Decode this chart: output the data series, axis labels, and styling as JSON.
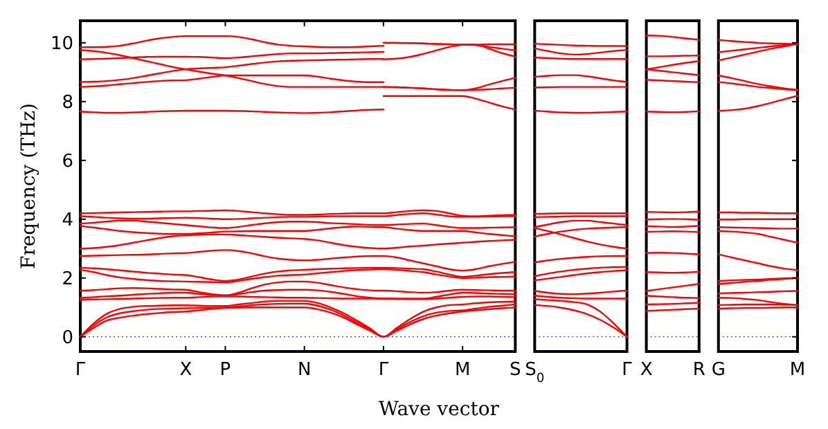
{
  "chart_data": [
    {
      "type": "line",
      "ylabel": "Frequency (THz)",
      "xlabel": "Wave vector",
      "ylim": [
        -0.5,
        10.75
      ],
      "yticks": [
        0,
        2,
        4,
        6,
        8,
        10
      ],
      "categories": [
        "Γ",
        null,
        null,
        null,
        null,
        null,
        null,
        null,
        "X",
        null,
        null,
        "P",
        null,
        null,
        null,
        null,
        null,
        "N",
        null,
        null,
        null,
        null,
        null,
        "Γ",
        null,
        null,
        null,
        null,
        null,
        "M",
        null,
        null,
        null,
        "S"
      ],
      "ref_lines": [
        {
          "axis": "y",
          "value": 0,
          "color": "#0000ff",
          "line_style": "dotted"
        }
      ],
      "series": [
        {
          "color": "#ff0000",
          "values": [
            9.85,
            9.85,
            9.86,
            9.9,
            9.98,
            10.07,
            10.15,
            10.2,
            10.23,
            10.23,
            10.23,
            10.23,
            10.2,
            10.12,
            10.02,
            9.94,
            9.9,
            9.88,
            9.86,
            9.85,
            9.85,
            9.86,
            9.88,
            9.9,
            null,
            null,
            null,
            null,
            null,
            null,
            null,
            null,
            null,
            null
          ]
        },
        {
          "color": "#ff0000",
          "values": [
            9.75,
            9.72,
            9.66,
            9.58,
            9.48,
            9.38,
            9.28,
            9.18,
            9.1,
            9.02,
            8.95,
            8.89,
            8.8,
            8.7,
            8.6,
            8.53,
            8.5,
            8.5,
            8.5,
            8.5,
            8.5,
            8.5,
            8.5,
            8.5,
            null,
            null,
            null,
            null,
            null,
            null,
            null,
            null,
            null,
            null
          ]
        },
        {
          "color": "#ff0000",
          "values": [
            9.44,
            9.45,
            9.46,
            9.48,
            9.5,
            9.52,
            9.53,
            9.53,
            9.53,
            9.52,
            9.5,
            9.48,
            9.5,
            9.54,
            9.58,
            9.62,
            9.64,
            9.64,
            9.64,
            9.65,
            9.66,
            9.67,
            9.68,
            9.69,
            null,
            null,
            null,
            null,
            null,
            null,
            null,
            null,
            null,
            null
          ]
        },
        {
          "color": "#ff0000",
          "values": [
            8.67,
            8.68,
            8.7,
            8.74,
            8.8,
            8.88,
            8.96,
            9.04,
            9.1,
            9.13,
            9.15,
            9.17,
            9.22,
            9.28,
            9.33,
            9.37,
            9.39,
            9.4,
            9.41,
            9.42,
            9.43,
            9.44,
            9.45,
            9.45,
            null,
            null,
            null,
            null,
            null,
            null,
            null,
            null,
            null,
            null
          ]
        },
        {
          "color": "#ff0000",
          "values": [
            8.5,
            8.52,
            8.55,
            8.59,
            8.63,
            8.67,
            8.7,
            8.72,
            8.73,
            8.78,
            8.84,
            8.89,
            8.89,
            8.89,
            8.89,
            8.89,
            8.89,
            8.89,
            8.85,
            8.78,
            8.72,
            8.68,
            8.66,
            8.66,
            null,
            null,
            null,
            null,
            null,
            null,
            null,
            null,
            null,
            null
          ]
        },
        {
          "color": "#ff0000",
          "values": [
            7.66,
            7.64,
            7.62,
            7.62,
            7.63,
            7.65,
            7.67,
            7.68,
            7.69,
            7.69,
            7.69,
            7.69,
            7.68,
            7.67,
            7.65,
            7.63,
            7.62,
            7.61,
            7.62,
            7.64,
            7.67,
            7.7,
            7.72,
            7.73,
            null,
            null,
            null,
            null,
            null,
            null,
            null,
            null,
            null,
            null
          ]
        },
        {
          "color": "#ff0000",
          "values": [
            null,
            null,
            null,
            null,
            null,
            null,
            null,
            null,
            null,
            null,
            null,
            null,
            null,
            null,
            null,
            null,
            null,
            null,
            null,
            null,
            null,
            null,
            null,
            10.0,
            10.0,
            9.99,
            9.98,
            9.96,
            9.95,
            9.94,
            9.94,
            9.95,
            9.95,
            9.95
          ]
        },
        {
          "color": "#ff0000",
          "values": [
            null,
            null,
            null,
            null,
            null,
            null,
            null,
            null,
            null,
            null,
            null,
            null,
            null,
            null,
            null,
            null,
            null,
            null,
            null,
            null,
            null,
            null,
            null,
            10.0,
            10.0,
            9.99,
            9.98,
            9.96,
            9.95,
            9.94,
            9.92,
            9.86,
            9.8,
            9.75
          ]
        },
        {
          "color": "#ff0000",
          "values": [
            null,
            null,
            null,
            null,
            null,
            null,
            null,
            null,
            null,
            null,
            null,
            null,
            null,
            null,
            null,
            null,
            null,
            null,
            null,
            null,
            null,
            null,
            null,
            9.44,
            9.46,
            9.52,
            9.62,
            9.74,
            9.86,
            9.93,
            9.94,
            9.8,
            9.65,
            9.53
          ]
        },
        {
          "color": "#ff0000",
          "values": [
            null,
            null,
            null,
            null,
            null,
            null,
            null,
            null,
            null,
            null,
            null,
            null,
            null,
            null,
            null,
            null,
            null,
            null,
            null,
            null,
            null,
            null,
            null,
            8.5,
            8.49,
            8.47,
            8.45,
            8.42,
            8.4,
            8.39,
            8.45,
            8.58,
            8.7,
            8.81
          ]
        },
        {
          "color": "#ff0000",
          "values": [
            null,
            null,
            null,
            null,
            null,
            null,
            null,
            null,
            null,
            null,
            null,
            null,
            null,
            null,
            null,
            null,
            null,
            null,
            null,
            null,
            null,
            null,
            null,
            8.5,
            8.49,
            8.47,
            8.45,
            8.42,
            8.4,
            8.39,
            8.4,
            8.42,
            8.45,
            8.47
          ]
        },
        {
          "color": "#ff0000",
          "values": [
            null,
            null,
            null,
            null,
            null,
            null,
            null,
            null,
            null,
            null,
            null,
            null,
            null,
            null,
            null,
            null,
            null,
            null,
            null,
            null,
            null,
            null,
            null,
            8.19,
            8.19,
            8.19,
            8.19,
            8.19,
            8.19,
            8.19,
            8.1,
            7.97,
            7.84,
            7.73
          ]
        },
        {
          "color": "#ff0000",
          "values": [
            4.2,
            4.21,
            4.22,
            4.23,
            4.24,
            4.25,
            4.26,
            4.27,
            4.27,
            4.28,
            4.29,
            4.3,
            4.28,
            4.24,
            4.2,
            4.17,
            4.15,
            4.15,
            4.16,
            4.18,
            4.19,
            4.2,
            4.2,
            4.2,
            4.24,
            4.28,
            4.3,
            4.28,
            4.2,
            4.12,
            4.1,
            4.12,
            4.14,
            4.15
          ]
        },
        {
          "color": "#ff0000",
          "values": [
            4.1,
            4.08,
            4.05,
            4.03,
            4.02,
            4.02,
            4.03,
            4.04,
            4.05,
            4.04,
            4.02,
            4.0,
            4.01,
            4.03,
            4.05,
            4.07,
            4.08,
            4.08,
            4.09,
            4.1,
            4.1,
            4.1,
            4.1,
            4.1,
            4.14,
            4.18,
            4.2,
            4.16,
            4.1,
            4.08,
            4.08,
            4.09,
            4.1,
            4.1
          ]
        },
        {
          "color": "#ff0000",
          "values": [
            3.85,
            3.88,
            3.92,
            3.95,
            3.95,
            3.92,
            3.88,
            3.84,
            3.8,
            3.76,
            3.72,
            3.7,
            3.74,
            3.8,
            3.86,
            3.9,
            3.92,
            3.92,
            3.9,
            3.87,
            3.85,
            3.83,
            3.81,
            3.8,
            3.82,
            3.84,
            3.85,
            3.8,
            3.74,
            3.7,
            3.7,
            3.71,
            3.72,
            3.73
          ]
        },
        {
          "color": "#ff0000",
          "values": [
            3.77,
            3.72,
            3.66,
            3.6,
            3.56,
            3.53,
            3.51,
            3.5,
            3.5,
            3.52,
            3.55,
            3.58,
            3.59,
            3.6,
            3.6,
            3.6,
            3.6,
            3.6,
            3.64,
            3.69,
            3.73,
            3.75,
            3.74,
            3.73,
            3.68,
            3.63,
            3.6,
            3.6,
            3.6,
            3.6,
            3.55,
            3.5,
            3.46,
            3.42
          ]
        },
        {
          "color": "#ff0000",
          "values": [
            3.0,
            3.02,
            3.06,
            3.12,
            3.2,
            3.28,
            3.36,
            3.42,
            3.45,
            3.47,
            3.48,
            3.48,
            3.46,
            3.43,
            3.4,
            3.37,
            3.35,
            3.33,
            3.28,
            3.2,
            3.12,
            3.06,
            3.02,
            3.0,
            3.03,
            3.07,
            3.1,
            3.14,
            3.17,
            3.2,
            3.23,
            3.26,
            3.28,
            3.3
          ]
        },
        {
          "color": "#ff0000",
          "values": [
            2.75,
            2.76,
            2.77,
            2.78,
            2.79,
            2.8,
            2.82,
            2.84,
            2.85,
            2.89,
            2.93,
            2.95,
            2.92,
            2.84,
            2.74,
            2.66,
            2.62,
            2.6,
            2.62,
            2.66,
            2.7,
            2.73,
            2.75,
            2.75,
            2.7,
            2.6,
            2.5,
            2.4,
            2.3,
            2.25,
            2.3,
            2.4,
            2.48,
            2.55
          ]
        },
        {
          "color": "#ff0000",
          "values": [
            2.35,
            2.33,
            2.3,
            2.26,
            2.22,
            2.18,
            2.15,
            2.12,
            2.1,
            2.03,
            1.95,
            1.9,
            1.95,
            2.05,
            2.15,
            2.22,
            2.26,
            2.28,
            2.3,
            2.32,
            2.33,
            2.34,
            2.35,
            2.35,
            2.34,
            2.32,
            2.3,
            2.22,
            2.12,
            2.04,
            2.08,
            2.13,
            2.17,
            2.2
          ]
        },
        {
          "color": "#ff0000",
          "values": [
            2.28,
            2.2,
            2.1,
            2.02,
            1.97,
            1.93,
            1.9,
            1.89,
            1.88,
            1.87,
            1.86,
            1.85,
            1.9,
            1.97,
            2.03,
            2.08,
            2.1,
            2.12,
            2.16,
            2.2,
            2.24,
            2.27,
            2.29,
            2.3,
            2.28,
            2.24,
            2.2,
            2.12,
            2.05,
            2.0,
            2.01,
            2.03,
            2.04,
            2.05
          ]
        },
        {
          "color": "#ff0000",
          "values": [
            1.57,
            1.59,
            1.62,
            1.65,
            1.66,
            1.65,
            1.63,
            1.61,
            1.6,
            1.52,
            1.45,
            1.41,
            1.5,
            1.65,
            1.78,
            1.85,
            1.88,
            1.88,
            1.84,
            1.76,
            1.68,
            1.62,
            1.58,
            1.57,
            1.55,
            1.52,
            1.5,
            1.52,
            1.57,
            1.6,
            1.59,
            1.58,
            1.57,
            1.57
          ]
        },
        {
          "color": "#ff0000",
          "values": [
            1.33,
            1.35,
            1.38,
            1.4,
            1.43,
            1.46,
            1.48,
            1.5,
            1.5,
            1.46,
            1.43,
            1.41,
            1.45,
            1.52,
            1.57,
            1.59,
            1.6,
            1.6,
            1.58,
            1.53,
            1.46,
            1.38,
            1.33,
            1.3,
            1.3,
            1.3,
            1.3,
            1.36,
            1.44,
            1.5,
            1.49,
            1.47,
            1.46,
            1.45
          ]
        },
        {
          "color": "#ff0000",
          "values": [
            1.26,
            1.27,
            1.28,
            1.29,
            1.3,
            1.31,
            1.32,
            1.33,
            1.33,
            1.35,
            1.37,
            1.38,
            1.37,
            1.36,
            1.35,
            1.34,
            1.33,
            1.33,
            1.32,
            1.31,
            1.3,
            1.3,
            1.3,
            1.3,
            1.29,
            1.28,
            1.28,
            1.3,
            1.33,
            1.36,
            1.37,
            1.37,
            1.36,
            1.35
          ]
        },
        {
          "color": "#ff0000",
          "values": [
            0,
            0.45,
            0.78,
            0.95,
            1.02,
            1.05,
            1.06,
            1.07,
            1.07,
            1.06,
            1.05,
            1.05,
            1.1,
            1.15,
            1.2,
            1.22,
            1.22,
            1.22,
            1.15,
            1.0,
            0.8,
            0.55,
            0.28,
            0,
            0.3,
            0.6,
            0.85,
            1.0,
            1.08,
            1.1,
            1.14,
            1.17,
            1.19,
            1.2
          ]
        },
        {
          "color": "#ff0000",
          "values": [
            0,
            0.38,
            0.66,
            0.8,
            0.87,
            0.92,
            0.95,
            0.96,
            0.97,
            0.98,
            0.99,
            1.0,
            1.03,
            1.07,
            1.1,
            1.12,
            1.13,
            1.13,
            1.06,
            0.92,
            0.72,
            0.48,
            0.24,
            0,
            0.25,
            0.5,
            0.7,
            0.82,
            0.88,
            0.9,
            0.96,
            1.02,
            1.06,
            1.1
          ]
        },
        {
          "color": "#ff0000",
          "values": [
            0,
            0.3,
            0.55,
            0.65,
            0.72,
            0.77,
            0.81,
            0.84,
            0.86,
            0.9,
            0.95,
            0.98,
            0.99,
            1.0,
            1.0,
            1.0,
            1.0,
            1.0,
            0.94,
            0.82,
            0.65,
            0.42,
            0.2,
            0,
            0.2,
            0.42,
            0.6,
            0.72,
            0.8,
            0.86,
            0.9,
            0.94,
            0.97,
            1.0
          ]
        }
      ]
    },
    {
      "type": "line",
      "ylim": [
        -0.5,
        10.75
      ],
      "tick_labels": "x",
      "categories": [
        "S$_{0}$",
        null,
        null,
        null,
        null,
        null,
        null,
        "Γ"
      ],
      "ref_lines": [
        {
          "axis": "y",
          "value": 0,
          "color": "#0000ff",
          "line_style": "dotted"
        }
      ],
      "series": [
        {
          "color": "#ff0000",
          "values": [
            9.97,
            9.95,
            9.93,
            9.91,
            9.9,
            9.89,
            9.89,
            9.89
          ]
        },
        {
          "color": "#ff0000",
          "values": [
            9.81,
            9.72,
            9.64,
            9.6,
            9.62,
            9.67,
            9.72,
            9.76
          ]
        },
        {
          "color": "#ff0000",
          "values": [
            9.5,
            9.48,
            9.46,
            9.45,
            9.45,
            9.45,
            9.45,
            9.45
          ]
        },
        {
          "color": "#ff0000",
          "values": [
            8.84,
            8.88,
            8.9,
            8.9,
            8.86,
            8.79,
            8.72,
            8.67
          ]
        },
        {
          "color": "#ff0000",
          "values": [
            8.48,
            8.49,
            8.5,
            8.5,
            8.5,
            8.5,
            8.5,
            8.5
          ]
        },
        {
          "color": "#ff0000",
          "values": [
            7.69,
            7.66,
            7.63,
            7.62,
            7.62,
            7.63,
            7.65,
            7.66
          ]
        },
        {
          "color": "#ff0000",
          "values": [
            4.18,
            4.19,
            4.2,
            4.2,
            4.2,
            4.2,
            4.2,
            4.2
          ]
        },
        {
          "color": "#ff0000",
          "values": [
            4.07,
            4.08,
            4.09,
            4.1,
            4.1,
            4.1,
            4.1,
            4.1
          ]
        },
        {
          "color": "#ff0000",
          "values": [
            3.73,
            3.82,
            3.9,
            3.95,
            3.95,
            3.9,
            3.85,
            3.8
          ]
        },
        {
          "color": "#ff0000",
          "values": [
            3.41,
            3.5,
            3.58,
            3.64,
            3.68,
            3.7,
            3.72,
            3.73
          ]
        },
        {
          "color": "#ff0000",
          "values": [
            3.7,
            3.6,
            3.48,
            3.36,
            3.24,
            3.14,
            3.06,
            3.0
          ]
        },
        {
          "color": "#ff0000",
          "values": [
            2.53,
            2.6,
            2.65,
            2.69,
            2.72,
            2.74,
            2.75,
            2.75
          ]
        },
        {
          "color": "#ff0000",
          "values": [
            2.06,
            2.15,
            2.22,
            2.28,
            2.32,
            2.35,
            2.37,
            2.38
          ]
        },
        {
          "color": "#ff0000",
          "values": [
            1.92,
            1.98,
            2.04,
            2.1,
            2.16,
            2.2,
            2.24,
            2.26
          ]
        },
        {
          "color": "#ff0000",
          "values": [
            1.56,
            1.5,
            1.46,
            1.45,
            1.47,
            1.5,
            1.54,
            1.57
          ]
        },
        {
          "color": "#ff0000",
          "values": [
            1.4,
            1.36,
            1.33,
            1.31,
            1.3,
            1.3,
            1.3,
            1.3
          ]
        },
        {
          "color": "#ff0000",
          "values": [
            1.28,
            1.25,
            1.22,
            1.18,
            1.1,
            0.85,
            0.45,
            0
          ]
        },
        {
          "color": "#ff0000",
          "values": [
            1.08,
            1.05,
            0.99,
            0.9,
            0.77,
            0.57,
            0.31,
            0
          ]
        }
      ]
    },
    {
      "type": "line",
      "ylim": [
        -0.5,
        10.75
      ],
      "tick_labels": "x",
      "categories": [
        "X",
        null,
        null,
        null,
        "R"
      ],
      "ref_lines": [
        {
          "axis": "y",
          "value": 0,
          "color": "#0000ff",
          "line_style": "dotted"
        }
      ],
      "series": [
        {
          "color": "#ff0000",
          "values": [
            10.25,
            10.24,
            10.2,
            10.15,
            10.1
          ]
        },
        {
          "color": "#ff0000",
          "values": [
            9.54,
            9.54,
            9.55,
            9.56,
            9.57
          ]
        },
        {
          "color": "#ff0000",
          "values": [
            9.1,
            9.17,
            9.25,
            9.32,
            9.38
          ]
        },
        {
          "color": "#ff0000",
          "values": [
            9.1,
            9.05,
            9.0,
            8.95,
            8.9
          ]
        },
        {
          "color": "#ff0000",
          "values": [
            8.74,
            8.72,
            8.7,
            8.68,
            8.66
          ]
        },
        {
          "color": "#ff0000",
          "values": [
            7.66,
            7.65,
            7.64,
            7.65,
            7.67
          ]
        },
        {
          "color": "#ff0000",
          "values": [
            4.25,
            4.24,
            4.23,
            4.24,
            4.26
          ]
        },
        {
          "color": "#ff0000",
          "values": [
            3.99,
            4.0,
            4.01,
            4.0,
            3.98
          ]
        },
        {
          "color": "#ff0000",
          "values": [
            3.76,
            3.75,
            3.74,
            3.75,
            3.77
          ]
        },
        {
          "color": "#ff0000",
          "values": [
            3.57,
            3.58,
            3.59,
            3.58,
            3.56
          ]
        },
        {
          "color": "#ff0000",
          "values": [
            2.85,
            2.86,
            2.85,
            2.83,
            2.8
          ]
        },
        {
          "color": "#ff0000",
          "values": [
            2.2,
            2.19,
            2.18,
            2.19,
            2.21
          ]
        },
        {
          "color": "#ff0000",
          "values": [
            1.56,
            1.62,
            1.68,
            1.74,
            1.8
          ]
        },
        {
          "color": "#ff0000",
          "values": [
            1.4,
            1.37,
            1.35,
            1.33,
            1.32
          ]
        },
        {
          "color": "#ff0000",
          "values": [
            1.1,
            1.11,
            1.12,
            1.14,
            1.16
          ]
        },
        {
          "color": "#ff0000",
          "values": [
            0.88,
            0.9,
            0.92,
            0.94,
            0.96
          ]
        }
      ]
    },
    {
      "type": "line",
      "ylim": [
        -0.5,
        10.75
      ],
      "tick_labels": "x",
      "yticks": [
        0,
        2,
        4,
        6,
        8,
        10
      ],
      "categories": [
        "G",
        null,
        null,
        null,
        null,
        null,
        "M"
      ],
      "ref_lines": [
        {
          "axis": "y",
          "value": 0,
          "color": "#0000ff",
          "line_style": "dotted"
        }
      ],
      "series": [
        {
          "color": "#ff0000",
          "values": [
            10.1,
            10.06,
            10.03,
            10.0,
            9.98,
            9.97,
            9.96
          ]
        },
        {
          "color": "#ff0000",
          "values": [
            9.68,
            9.73,
            9.78,
            9.83,
            9.88,
            9.92,
            9.96
          ]
        },
        {
          "color": "#ff0000",
          "values": [
            9.4,
            9.5,
            9.6,
            9.7,
            9.8,
            9.88,
            9.96
          ]
        },
        {
          "color": "#ff0000",
          "values": [
            8.89,
            8.8,
            8.7,
            8.6,
            8.52,
            8.45,
            8.4
          ]
        },
        {
          "color": "#ff0000",
          "values": [
            8.67,
            8.62,
            8.56,
            8.5,
            8.46,
            8.42,
            8.4
          ]
        },
        {
          "color": "#ff0000",
          "values": [
            7.69,
            7.71,
            7.76,
            7.85,
            7.96,
            8.08,
            8.2
          ]
        },
        {
          "color": "#ff0000",
          "values": [
            4.23,
            4.23,
            4.22,
            4.22,
            4.21,
            4.2,
            4.2
          ]
        },
        {
          "color": "#ff0000",
          "values": [
            3.99,
            3.99,
            4.0,
            4.0,
            4.0,
            4.0,
            4.0
          ]
        },
        {
          "color": "#ff0000",
          "values": [
            3.73,
            3.72,
            3.71,
            3.7,
            3.69,
            3.68,
            3.68
          ]
        },
        {
          "color": "#ff0000",
          "values": [
            3.6,
            3.58,
            3.55,
            3.5,
            3.4,
            3.3,
            3.2
          ]
        },
        {
          "color": "#ff0000",
          "values": [
            2.81,
            2.7,
            2.6,
            2.5,
            2.4,
            2.32,
            2.27
          ]
        },
        {
          "color": "#ff0000",
          "values": [
            1.9,
            1.92,
            1.94,
            1.95,
            1.97,
            1.99,
            2.0
          ]
        },
        {
          "color": "#ff0000",
          "values": [
            1.8,
            1.83,
            1.87,
            1.9,
            1.94,
            1.97,
            2.0
          ]
        },
        {
          "color": "#ff0000",
          "values": [
            1.48,
            1.49,
            1.5,
            1.52,
            1.53,
            1.55,
            1.56
          ]
        },
        {
          "color": "#ff0000",
          "values": [
            1.33,
            1.32,
            1.29,
            1.25,
            1.18,
            1.12,
            1.08
          ]
        },
        {
          "color": "#ff0000",
          "values": [
            1.08,
            1.09,
            1.1,
            1.1,
            1.1,
            1.09,
            1.08
          ]
        },
        {
          "color": "#ff0000",
          "values": [
            0.96,
            0.97,
            0.98,
            0.98,
            0.99,
            1.0,
            1.0
          ]
        }
      ]
    }
  ]
}
